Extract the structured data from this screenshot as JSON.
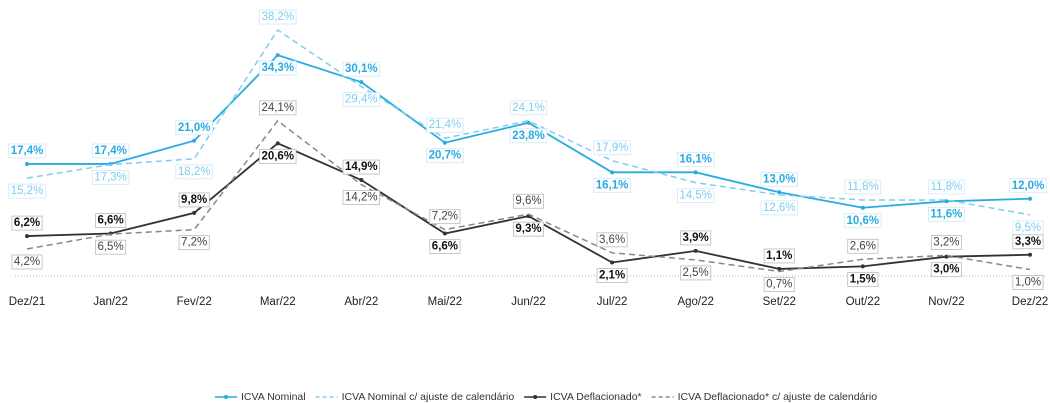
{
  "chart_data": {
    "type": "line",
    "categories": [
      "Dez/21",
      "Jan/22",
      "Fev/22",
      "Mar/22",
      "Abr/22",
      "Mai/22",
      "Jun/22",
      "Jul/22",
      "Ago/22",
      "Set/22",
      "Out/22",
      "Nov/22",
      "Dez/22"
    ],
    "series": [
      {
        "name": "ICVA Nominal",
        "color": "#29abe2",
        "dashed": false,
        "values": [
          17.4,
          17.4,
          21.0,
          34.3,
          30.1,
          20.7,
          23.8,
          16.1,
          16.1,
          13.0,
          10.6,
          11.6,
          12.0
        ],
        "value_labels": [
          "17,4%",
          "17,4%",
          "21,0%",
          "34,3%",
          "30,1%",
          "20,7%",
          "23,8%",
          "16,1%",
          "16,1%",
          "13,0%",
          "10,6%",
          "11,6%",
          "12,0%"
        ]
      },
      {
        "name": "ICVA Nominal c/ ajuste de calendário",
        "color": "#7fcdf0",
        "dashed": true,
        "values": [
          15.2,
          17.3,
          18.2,
          38.2,
          29.4,
          21.4,
          24.1,
          17.9,
          14.5,
          12.6,
          11.8,
          11.8,
          9.5
        ],
        "value_labels": [
          "15,2%",
          "17,3%",
          "18,2%",
          "38,2%",
          "29,4%",
          "21,4%",
          "24,1%",
          "17,9%",
          "14,5%",
          "12,6%",
          "11,8%",
          "11,8%",
          "9,5%"
        ]
      },
      {
        "name": "ICVA Deflacionado*",
        "color": "#333333",
        "dashed": false,
        "values": [
          6.2,
          6.6,
          9.8,
          20.6,
          14.9,
          6.6,
          9.3,
          2.1,
          3.9,
          1.1,
          1.5,
          3.0,
          3.3
        ],
        "value_labels": [
          "6,2%",
          "6,6%",
          "9,8%",
          "20,6%",
          "14,9%",
          "6,6%",
          "9,3%",
          "2,1%",
          "3,9%",
          "1,1%",
          "1,5%",
          "3,0%",
          "3,3%"
        ]
      },
      {
        "name": "ICVA Deflacionado* c/ ajuste de calendário",
        "color": "#888888",
        "dashed": true,
        "values": [
          4.2,
          6.5,
          7.2,
          24.1,
          14.2,
          7.2,
          9.6,
          3.6,
          2.5,
          0.7,
          2.6,
          3.2,
          1.0
        ],
        "value_labels": [
          "4,2%",
          "6,5%",
          "7,2%",
          "24,1%",
          "14,2%",
          "7,2%",
          "9,6%",
          "3,6%",
          "2,5%",
          "0,7%",
          "2,6%",
          "3,2%",
          "1,0%"
        ]
      }
    ]
  }
}
